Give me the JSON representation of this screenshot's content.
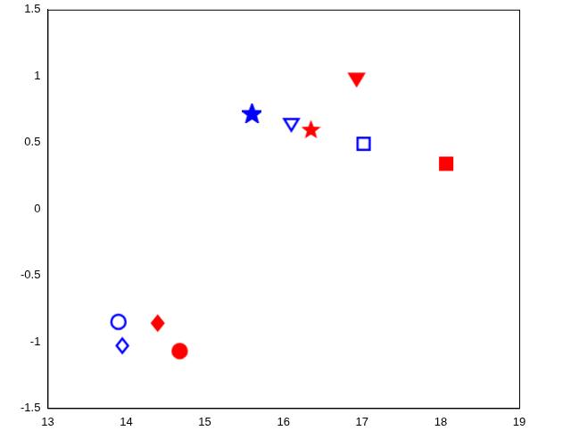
{
  "chart_data": {
    "type": "scatter",
    "xlim": [
      13,
      19
    ],
    "xticks": [
      13,
      14,
      15,
      16,
      17,
      18,
      19
    ],
    "ylim": [
      -1.5,
      1.5
    ],
    "yticks": [
      -1.5,
      -1,
      -0.5,
      0,
      0.5,
      1,
      1.5
    ],
    "grid": false,
    "series": [
      {
        "color": "#0000ff",
        "marker": "circle-open",
        "x": [
          13.9
        ],
        "y": [
          -0.85
        ]
      },
      {
        "color": "#0000ff",
        "marker": "diamond-open",
        "x": [
          13.95
        ],
        "y": [
          -1.03
        ]
      },
      {
        "color": "#ff0000",
        "marker": "diamond",
        "x": [
          14.4
        ],
        "y": [
          -0.86
        ]
      },
      {
        "color": "#ff0000",
        "marker": "circle",
        "x": [
          14.68
        ],
        "y": [
          -1.07
        ]
      },
      {
        "color": "#0000ff",
        "marker": "star",
        "x": [
          15.6
        ],
        "y": [
          0.72
        ]
      },
      {
        "color": "#0000ff",
        "marker": "triangle-down-open",
        "x": [
          16.1
        ],
        "y": [
          0.64
        ]
      },
      {
        "color": "#ff0000",
        "marker": "star",
        "x": [
          16.35
        ],
        "y": [
          0.6
        ]
      },
      {
        "color": "#ff0000",
        "marker": "triangle-down",
        "x": [
          16.93
        ],
        "y": [
          0.98
        ]
      },
      {
        "color": "#0000ff",
        "marker": "square-open",
        "x": [
          17.02
        ],
        "y": [
          0.49
        ]
      },
      {
        "color": "#ff0000",
        "marker": "square",
        "x": [
          18.07
        ],
        "y": [
          0.34
        ]
      }
    ]
  }
}
